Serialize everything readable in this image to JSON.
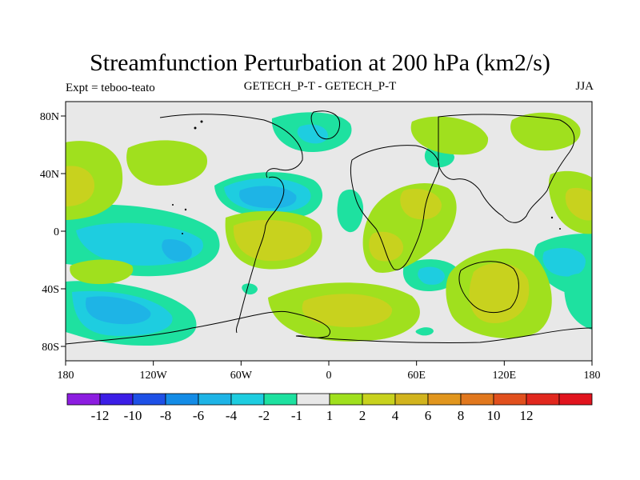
{
  "title": "Streamfunction Perturbation at 200 hPa (km2/s)",
  "left_label": "Expt = teboo-teato",
  "center_label": "GETECH_P-T - GETECH_P-T",
  "right_label": "JJA",
  "map": {
    "lon_range": [
      -180,
      180
    ],
    "lat_range": [
      -90,
      90
    ],
    "background_color": "#e8e8e8",
    "coastline_color": "#000000",
    "x_ticks": [
      {
        "value": -180,
        "label": "180"
      },
      {
        "value": -120,
        "label": "120W"
      },
      {
        "value": -60,
        "label": "60W"
      },
      {
        "value": 0,
        "label": "0"
      },
      {
        "value": 60,
        "label": "60E"
      },
      {
        "value": 120,
        "label": "120E"
      },
      {
        "value": 180,
        "label": "180"
      }
    ],
    "y_ticks": [
      {
        "value": 80,
        "label": "80N"
      },
      {
        "value": 40,
        "label": "40N"
      },
      {
        "value": 0,
        "label": "0"
      },
      {
        "value": -40,
        "label": "40S"
      },
      {
        "value": -80,
        "label": "80S"
      }
    ]
  },
  "colorbar": {
    "colors": [
      "#8c1de0",
      "#3c1ee6",
      "#1e50e6",
      "#148ce6",
      "#1eb4e6",
      "#1ecde0",
      "#1ee1a0",
      "#e8e8e8",
      "#a0e01e",
      "#c8d21e",
      "#d2b41e",
      "#e1961e",
      "#e1781e",
      "#e1501e",
      "#e1281e",
      "#e1141e"
    ],
    "labels": [
      "-12",
      "-10",
      "-8",
      "-6",
      "-4",
      "-2",
      "-1",
      "1",
      "2",
      "4",
      "6",
      "8",
      "10",
      "12"
    ]
  },
  "levels": {
    "pos1": "#a0e01e",
    "pos2": "#c8d21e",
    "neg1": "#1ee1a0",
    "neg2": "#1ecde0",
    "neg3": "#1eb4e6"
  }
}
